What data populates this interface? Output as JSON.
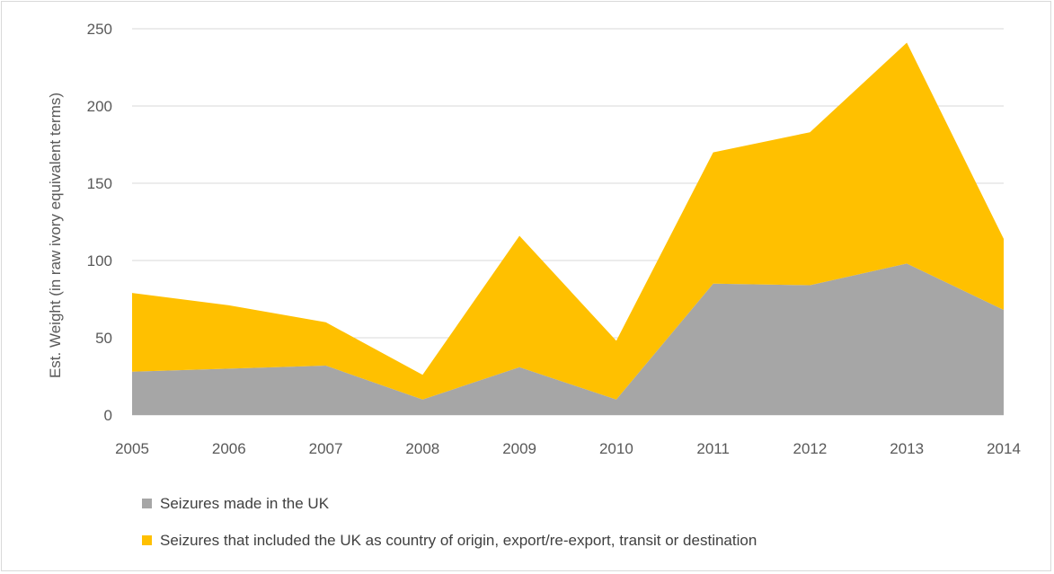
{
  "chart_data": {
    "type": "area",
    "stacked": true,
    "x": [
      "2005",
      "2006",
      "2007",
      "2008",
      "2009",
      "2010",
      "2011",
      "2012",
      "2013",
      "2014"
    ],
    "series": [
      {
        "name": "Seizures made in the UK",
        "color": "#a6a6a6",
        "values": [
          28,
          30,
          32,
          10,
          31,
          10,
          85,
          84,
          98,
          68
        ]
      },
      {
        "name": "Seizures that included the UK as country of origin, export/re-export, transit or destination",
        "color": "#ffc000",
        "values": [
          51,
          41,
          28,
          16,
          85,
          38,
          85,
          99,
          143,
          46
        ]
      }
    ],
    "ylabel": "Est. Weight (in raw ivory equivalent terms)",
    "xlabel": "",
    "ylim": [
      0,
      250
    ],
    "yticks": [
      0,
      50,
      100,
      150,
      200,
      250
    ],
    "grid": true,
    "legend": "bottom"
  }
}
